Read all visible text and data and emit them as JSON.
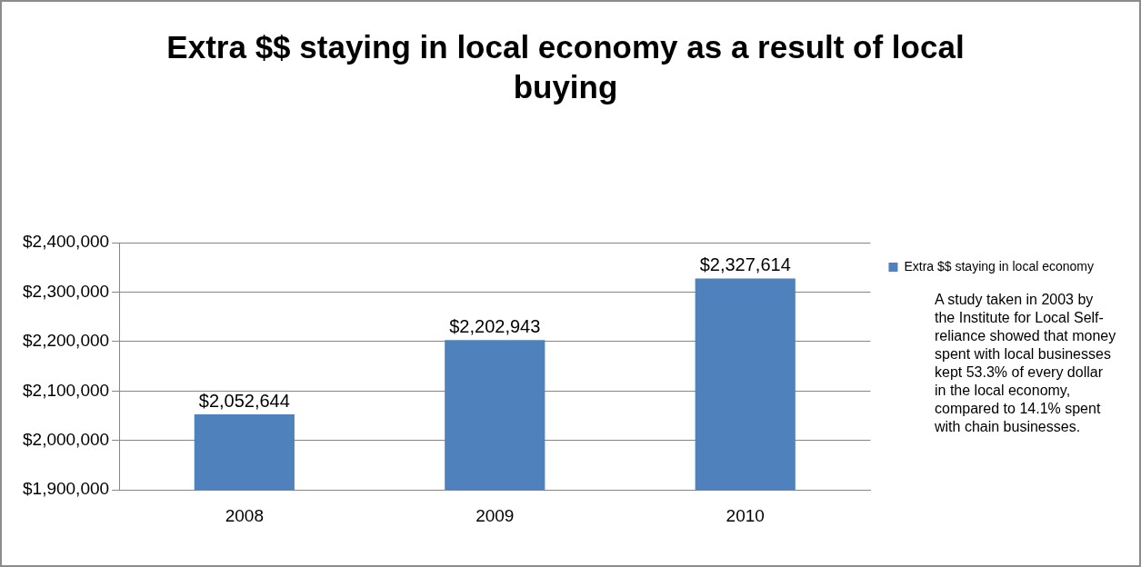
{
  "chart_data": {
    "type": "bar",
    "title": "Extra $$ staying in local economy as a result of local buying",
    "categories": [
      "2008",
      "2009",
      "2010"
    ],
    "series": [
      {
        "name": "Extra $$ staying in local economy",
        "color": "#4f81bd",
        "values": [
          2052644,
          2202943,
          2327614
        ],
        "value_labels": [
          "$2,052,644",
          "$2,202,943",
          "$2,327,614"
        ]
      }
    ],
    "ylim": [
      1900000,
      2400000
    ],
    "yticks": [
      {
        "value": 1900000,
        "label": "$1,900,000"
      },
      {
        "value": 2000000,
        "label": "$2,000,000"
      },
      {
        "value": 2100000,
        "label": "$2,100,000"
      },
      {
        "value": 2200000,
        "label": "$2,200,000"
      },
      {
        "value": 2300000,
        "label": "$2,300,000"
      },
      {
        "value": 2400000,
        "label": "$2,400,000"
      }
    ],
    "grid": "y",
    "legend": "top right",
    "annotations": [
      "A study taken in 2003 by the Institute for Local Self-reliance showed that money spent with local businesses kept 53.3% of every dollar in the local economy, compared to 14.1% spent with chain businesses."
    ]
  }
}
